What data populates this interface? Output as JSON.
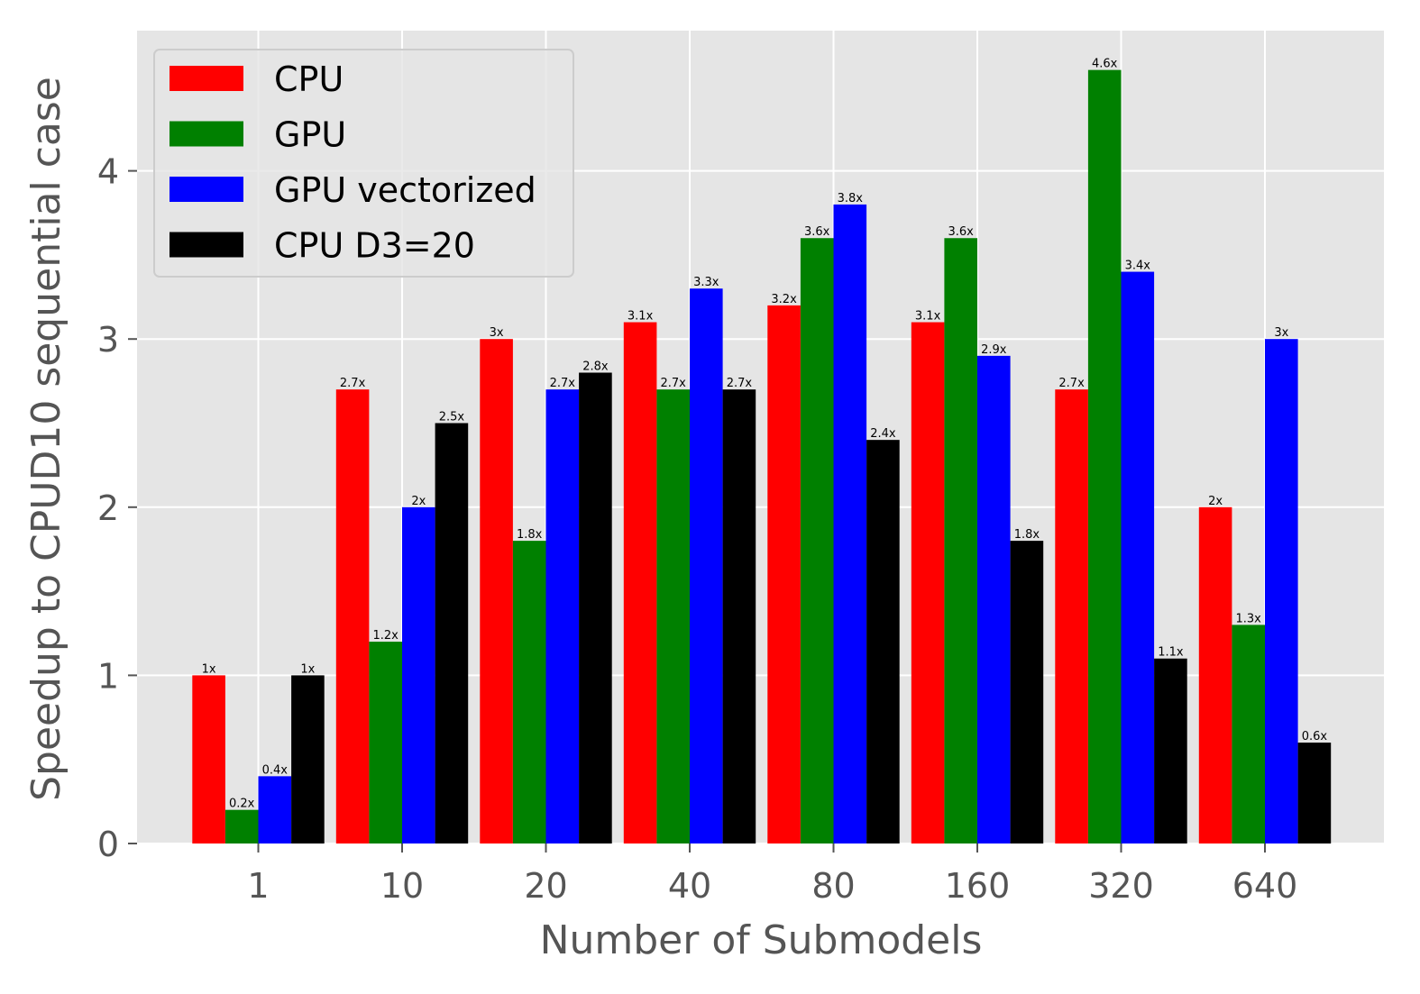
{
  "chart_data": {
    "type": "bar",
    "title": "",
    "xlabel": "Number of Submodels",
    "ylabel": "Speedup to CPUD10 sequential case",
    "categories": [
      "1",
      "10",
      "20",
      "40",
      "80",
      "160",
      "320",
      "640"
    ],
    "series": [
      {
        "name": "CPU",
        "color": "#ff0000",
        "values": [
          1,
          2.7,
          3,
          3.1,
          3.2,
          3.1,
          2.7,
          2
        ],
        "labels": [
          "1x",
          "2.7x",
          "3x",
          "3.1x",
          "3.2x",
          "3.1x",
          "2.7x",
          "2x"
        ]
      },
      {
        "name": "GPU",
        "color": "#008000",
        "values": [
          0.2,
          1.2,
          1.8,
          2.7,
          3.6,
          3.6,
          4.6,
          1.3
        ],
        "labels": [
          "0.2x",
          "1.2x",
          "1.8x",
          "2.7x",
          "3.6x",
          "3.6x",
          "4.6x",
          "1.3x"
        ]
      },
      {
        "name": "GPU vectorized",
        "color": "#0000ff",
        "values": [
          0.4,
          2,
          2.7,
          3.3,
          3.8,
          2.9,
          3.4,
          3
        ],
        "labels": [
          "0.4x",
          "2x",
          "2.7x",
          "3.3x",
          "3.8x",
          "2.9x",
          "3.4x",
          "3x"
        ]
      },
      {
        "name": "CPU D3=20",
        "color": "#000000",
        "values": [
          1,
          2.5,
          2.8,
          2.7,
          2.4,
          1.8,
          1.1,
          0.6
        ],
        "labels": [
          "1x",
          "2.5x",
          "2.8x",
          "2.7x",
          "2.4x",
          "1.8x",
          "1.1x",
          "0.6x"
        ]
      }
    ],
    "yticks": [
      "0",
      "1",
      "2",
      "3",
      "4"
    ],
    "ylim": [
      0,
      4.83
    ],
    "grid": true,
    "legend_position": "top-left",
    "plot_background": "#e5e5e5",
    "style": "ggplot"
  }
}
